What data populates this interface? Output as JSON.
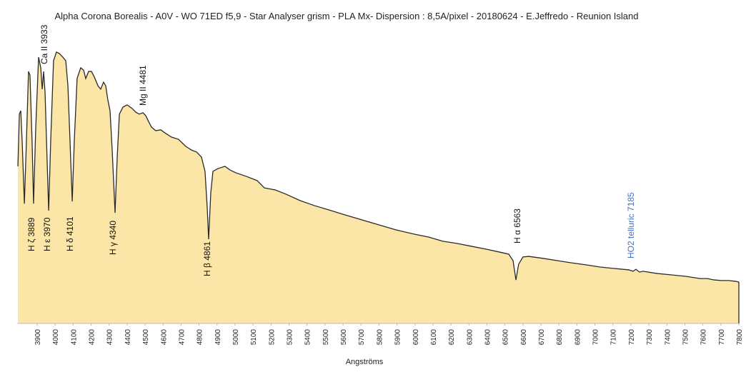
{
  "chart_data": {
    "type": "area",
    "title": "Alpha Corona Borealis - A0V - WO 71ED  f5,9 - Star Analyser grism - PLA Mx- Dispersion : 8,5A/pixel - 20180624 - E.Jeffredo - Reunion Island",
    "x_label": "Angströms",
    "fill": "#fbe6a8",
    "line_color": "#2a2a2a",
    "xlim": [
      3790,
      7800
    ],
    "ylim": [
      0,
      100
    ],
    "xticks": [
      3900,
      4000,
      4100,
      4200,
      4300,
      4400,
      4500,
      4600,
      4700,
      4800,
      4900,
      5000,
      5100,
      5200,
      5300,
      5400,
      5500,
      5600,
      5700,
      5800,
      5900,
      6000,
      6100,
      6200,
      6300,
      6400,
      6500,
      6600,
      6700,
      6800,
      6900,
      7000,
      7100,
      7200,
      7300,
      7400,
      7500,
      7600,
      7700,
      7800
    ],
    "x": [
      3793,
      3801,
      3809,
      3817,
      3829,
      3840,
      3852,
      3860,
      3872,
      3880,
      3892,
      3908,
      3920,
      3928,
      3936,
      3944,
      3956,
      3964,
      3975,
      3991,
      4007,
      4023,
      4043,
      4059,
      4071,
      4083,
      4095,
      4106,
      4122,
      4142,
      4158,
      4170,
      4186,
      4202,
      4218,
      4238,
      4253,
      4269,
      4281,
      4293,
      4305,
      4317,
      4333,
      4345,
      4357,
      4377,
      4400,
      4428,
      4448,
      4468,
      4488,
      4504,
      4519,
      4535,
      4559,
      4587,
      4615,
      4647,
      4686,
      4726,
      4758,
      4786,
      4813,
      4833,
      4845,
      4853,
      4865,
      4877,
      4905,
      4944,
      4972,
      5004,
      5063,
      5123,
      5163,
      5222,
      5282,
      5361,
      5441,
      5520,
      5600,
      5679,
      5758,
      5838,
      5897,
      5997,
      6076,
      6155,
      6235,
      6314,
      6394,
      6473,
      6521,
      6545,
      6561,
      6576,
      6600,
      6632,
      6711,
      6791,
      6870,
      6950,
      7029,
      7108,
      7188,
      7212,
      7228,
      7248,
      7267,
      7347,
      7426,
      7505,
      7585,
      7625,
      7664,
      7704,
      7744,
      7784,
      7796,
      7800
    ],
    "values": [
      56.0,
      74.6,
      75.8,
      64.4,
      42.7,
      64.4,
      89.8,
      88.5,
      64.4,
      42.7,
      69.5,
      94.9,
      91.1,
      83.5,
      89.8,
      82.2,
      56.7,
      40.2,
      64.4,
      93.6,
      96.7,
      96.2,
      94.9,
      93.6,
      84.7,
      64.4,
      43.5,
      64.4,
      87.3,
      91.1,
      90.3,
      87.3,
      89.8,
      89.8,
      87.8,
      84.7,
      83.5,
      86.0,
      84.7,
      79.6,
      75.8,
      61.8,
      39.4,
      59.3,
      74.6,
      77.1,
      77.9,
      76.6,
      75.3,
      74.6,
      75.1,
      74.0,
      72.0,
      70.0,
      68.7,
      69.0,
      67.7,
      66.4,
      65.6,
      63.1,
      61.8,
      61.1,
      59.3,
      54.2,
      41.5,
      30.0,
      46.6,
      54.2,
      55.2,
      56.0,
      54.7,
      53.7,
      52.4,
      50.9,
      48.3,
      47.6,
      46.1,
      43.8,
      42.0,
      40.5,
      38.9,
      37.4,
      35.9,
      34.4,
      33.3,
      31.8,
      30.8,
      29.3,
      28.5,
      27.5,
      26.5,
      25.4,
      24.7,
      22.4,
      15.5,
      21.1,
      23.7,
      23.9,
      23.2,
      22.4,
      21.6,
      20.9,
      20.1,
      19.6,
      19.1,
      18.6,
      19.3,
      18.3,
      18.6,
      17.8,
      17.3,
      16.8,
      16.0,
      16.0,
      15.5,
      15.3,
      15.3,
      15.0,
      14.8,
      14.8
    ],
    "annotations": [
      {
        "text": "Ca II 3933",
        "color": "#111111"
      },
      {
        "text": "Mg II 4481",
        "color": "#111111"
      },
      {
        "text": "H ζ 3889",
        "color": "#111111"
      },
      {
        "text": "H ε 3970",
        "color": "#111111"
      },
      {
        "text": "H δ 4101",
        "color": "#111111"
      },
      {
        "text": "H γ 4340",
        "color": "#111111"
      },
      {
        "text": "H β 4861",
        "color": "#111111"
      },
      {
        "text": "H α 6563",
        "color": "#111111"
      },
      {
        "text": "HO2 telluric 7185",
        "color": "#4472c4"
      }
    ]
  }
}
